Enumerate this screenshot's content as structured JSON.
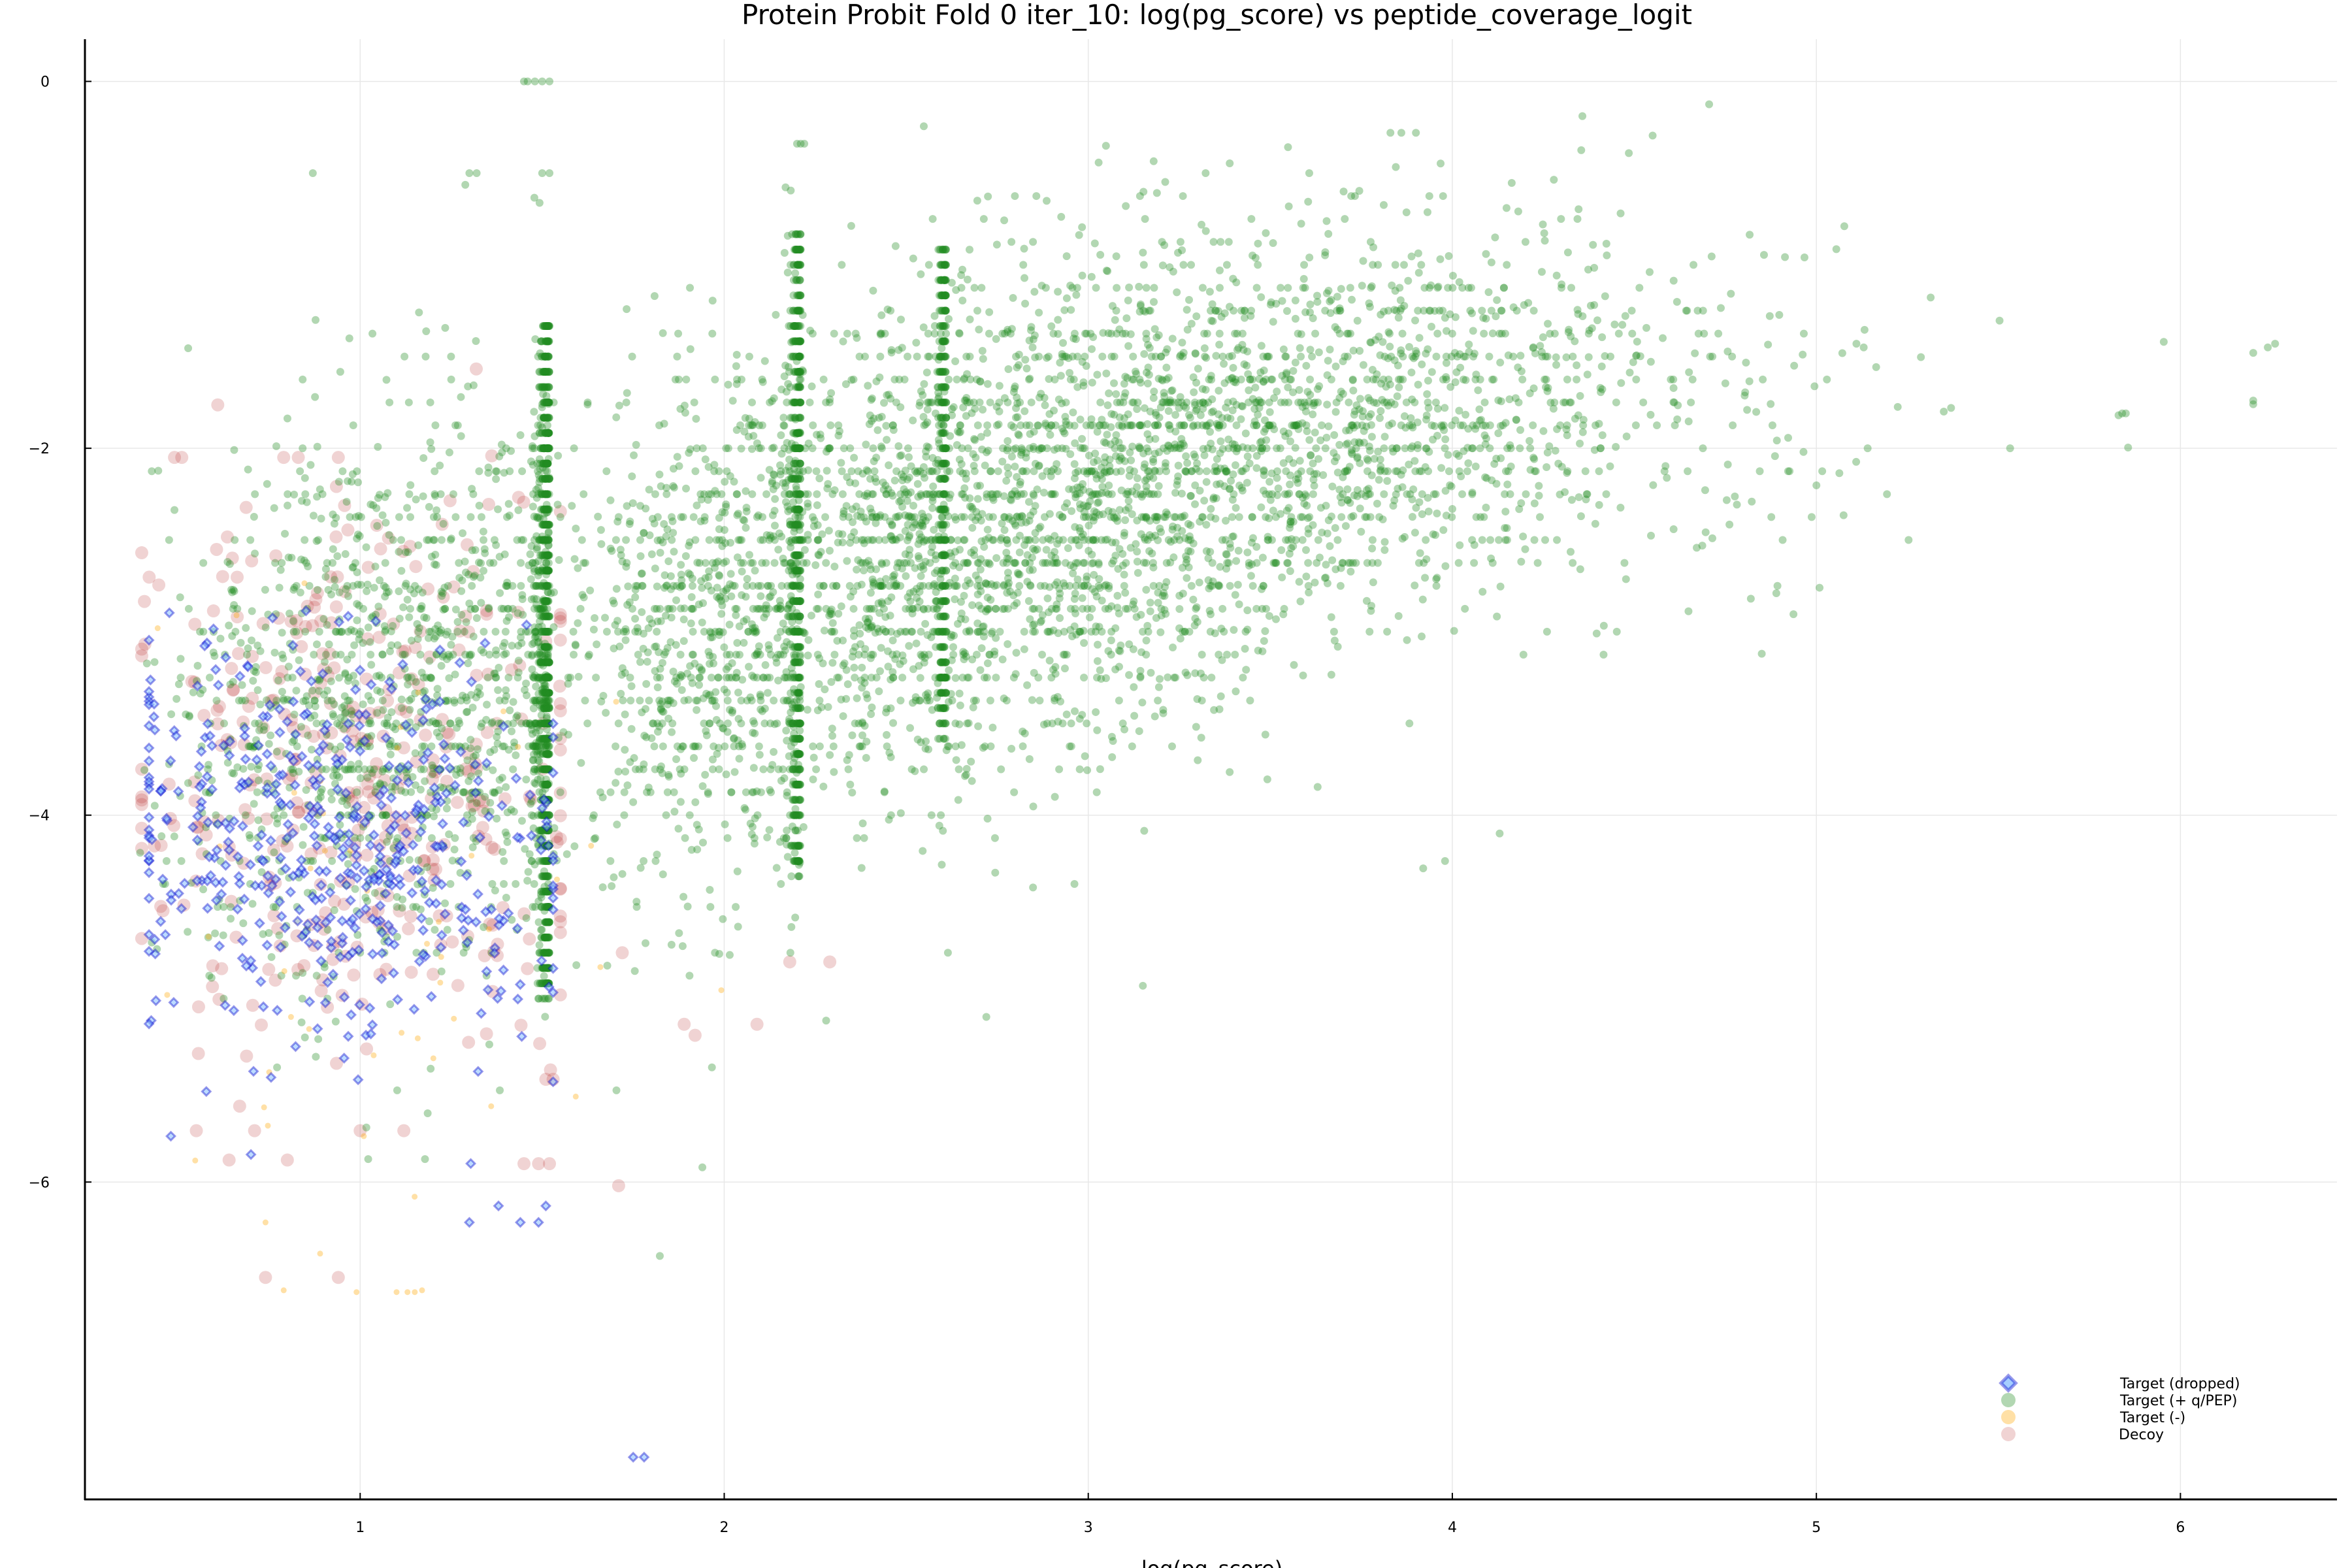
{
  "chart_data": {
    "type": "scatter",
    "title": "Protein Probit Fold 0 iter_10: log(pg_score) vs peptide_coverage_logit",
    "xlabel": "log(pg_score)",
    "ylabel": "",
    "xlim": [
      0.244,
      6.43
    ],
    "ylim": [
      -7.73,
      0.23
    ],
    "x_ticks": [
      1,
      2,
      3,
      4,
      5,
      6
    ],
    "y_ticks": [
      0,
      -2,
      -4,
      -6
    ],
    "x_tick_labels": [
      "1",
      "2",
      "3",
      "4",
      "5",
      "6"
    ],
    "y_tick_labels": [
      "0",
      "−2",
      "−4",
      "−6"
    ],
    "grid": true,
    "legend_position": "bottom-right",
    "legend": [
      "Target (dropped)",
      "Target (+ q/PEP)",
      "Target (-)",
      "Decoy"
    ],
    "series": [
      {
        "name": "Target (+ q/PEP)",
        "marker": "circle",
        "color": "#228B22",
        "alpha": 0.35,
        "approx_count": 9000,
        "clusters": [
          {
            "x_center": 1.15,
            "x_spread": 0.38,
            "x_max": 1.52,
            "y_center": -3.3,
            "y_spread": 0.75,
            "count": 1500,
            "note": "left band, densest at x≈1.52 vertical column"
          },
          {
            "x_column": 1.52,
            "y_range": [
              -5.0,
              -1.3
            ],
            "count": 900,
            "note": "dense vertical stripe"
          },
          {
            "x_center": 1.95,
            "x_spread": 0.22,
            "x_max": 2.21,
            "y_center": -3.0,
            "y_spread": 0.7,
            "count": 900
          },
          {
            "x_column": 2.21,
            "y_range": [
              -4.3,
              -0.8
            ],
            "count": 600,
            "note": "dense vertical stripe"
          },
          {
            "x_center": 2.45,
            "x_spread": 0.2,
            "y_center": -2.6,
            "y_spread": 0.65,
            "count": 800
          },
          {
            "x_column": 2.61,
            "y_range": [
              -3.6,
              -0.9
            ],
            "count": 400
          },
          {
            "x_center": 2.95,
            "x_spread": 0.3,
            "y_center": -2.3,
            "y_spread": 0.7,
            "count": 1100
          },
          {
            "x_center": 3.45,
            "x_spread": 0.35,
            "y_center": -2.0,
            "y_spread": 0.55,
            "count": 1000
          },
          {
            "x_center": 4.0,
            "x_spread": 0.35,
            "y_center": -1.8,
            "y_spread": 0.5,
            "count": 500
          },
          {
            "x_center": 4.7,
            "x_spread": 0.35,
            "y_center": -1.9,
            "y_spread": 0.5,
            "count": 120
          }
        ],
        "notable_points": [
          [
            1.48,
            0.0
          ],
          [
            1.5,
            0.0
          ],
          [
            1.52,
            0.0
          ],
          [
            1.45,
            0.0
          ],
          [
            1.46,
            0.0
          ],
          [
            2.2,
            -0.34
          ],
          [
            2.22,
            -0.34
          ],
          [
            2.21,
            -0.34
          ],
          [
            3.83,
            -0.28
          ],
          [
            3.86,
            -0.28
          ],
          [
            3.9,
            -0.28
          ],
          [
            0.87,
            -0.5
          ],
          [
            1.3,
            -0.5
          ],
          [
            1.32,
            -0.5
          ],
          [
            1.5,
            -0.5
          ],
          [
            1.52,
            -0.5
          ],
          [
            5.11,
            -1.43
          ],
          [
            5.13,
            -1.45
          ],
          [
            5.35,
            -1.8
          ],
          [
            5.37,
            -1.78
          ],
          [
            5.83,
            -1.82
          ],
          [
            5.84,
            -1.81
          ],
          [
            5.85,
            -1.81
          ],
          [
            6.2,
            -1.48
          ],
          [
            6.24,
            -1.45
          ],
          [
            6.26,
            -1.43
          ],
          [
            6.2,
            -1.74
          ],
          [
            6.2,
            -1.76
          ],
          [
            4.85,
            -3.12
          ],
          [
            4.82,
            -2.82
          ],
          [
            4.89,
            -2.79
          ],
          [
            4.13,
            -4.1
          ],
          [
            3.92,
            -4.29
          ],
          [
            3.98,
            -4.25
          ],
          [
            2.72,
            -5.1
          ],
          [
            3.15,
            -4.93
          ],
          [
            1.94,
            -5.92
          ],
          [
            2.28,
            -5.12
          ]
        ]
      },
      {
        "name": "Target (dropped)",
        "marker": "diamond",
        "color": "#0000CD",
        "alpha": 0.4,
        "approx_count": 500,
        "clusters": [
          {
            "x_center": 0.95,
            "x_spread": 0.32,
            "x_range": [
              0.42,
              1.53
            ],
            "y_center": -4.2,
            "y_spread": 0.55,
            "count": 480
          }
        ],
        "notable_points": [
          [
            1.75,
            -7.5
          ],
          [
            1.78,
            -7.5
          ],
          [
            1.44,
            -6.22
          ],
          [
            1.49,
            -6.22
          ],
          [
            1.38,
            -6.13
          ],
          [
            1.51,
            -6.13
          ],
          [
            1.3,
            -6.22
          ],
          [
            0.7,
            -5.85
          ],
          [
            0.48,
            -5.75
          ]
        ]
      },
      {
        "name": "Target (-)",
        "marker": "circle",
        "color": "#FFA500",
        "alpha": 0.35,
        "approx_count": 60,
        "clusters": [
          {
            "x_center": 1.0,
            "x_spread": 0.3,
            "y_center": -4.5,
            "y_spread": 0.8,
            "count": 45
          }
        ],
        "notable_points": [
          [
            0.74,
            -6.22
          ],
          [
            0.89,
            -6.39
          ],
          [
            0.79,
            -6.59
          ],
          [
            0.99,
            -6.6
          ],
          [
            1.1,
            -6.6
          ],
          [
            1.13,
            -6.6
          ],
          [
            1.15,
            -6.6
          ],
          [
            1.17,
            -6.59
          ],
          [
            0.81,
            -5.1
          ],
          [
            0.47,
            -4.98
          ],
          [
            1.01,
            -5.75
          ]
        ]
      },
      {
        "name": "Decoy",
        "marker": "circle",
        "color": "#B22222",
        "alpha": 0.2,
        "approx_count": 400,
        "clusters": [
          {
            "x_center": 1.0,
            "x_spread": 0.32,
            "x_range": [
              0.4,
              1.55
            ],
            "y_center": -3.8,
            "y_spread": 0.75,
            "count": 380
          }
        ],
        "notable_points": [
          [
            0.49,
            -2.05
          ],
          [
            0.51,
            -2.05
          ],
          [
            0.79,
            -2.05
          ],
          [
            0.83,
            -2.05
          ],
          [
            0.94,
            -2.05
          ],
          [
            0.74,
            -6.52
          ],
          [
            0.94,
            -6.52
          ],
          [
            1.71,
            -6.02
          ],
          [
            1.72,
            -4.75
          ],
          [
            1.89,
            -5.14
          ],
          [
            1.92,
            -5.2
          ],
          [
            2.09,
            -5.14
          ],
          [
            2.18,
            -4.8
          ],
          [
            2.29,
            -4.8
          ],
          [
            1.49,
            -5.9
          ],
          [
            1.45,
            -5.9
          ],
          [
            1.52,
            -5.9
          ],
          [
            1.51,
            -5.44
          ],
          [
            1.53,
            -5.44
          ],
          [
            0.64,
            -5.88
          ],
          [
            0.8,
            -5.88
          ],
          [
            0.71,
            -5.72
          ],
          [
            0.55,
            -5.72
          ],
          [
            1.0,
            -5.72
          ],
          [
            1.12,
            -5.72
          ]
        ]
      }
    ]
  },
  "plot": {
    "title": "Protein Probit Fold 0 iter_10: log(pg_score) vs peptide_coverage_logit",
    "xlabel": "log(pg_score)",
    "legend": [
      {
        "label": "Target (dropped)",
        "marker": "diamond"
      },
      {
        "label": "Target (+ q/PEP)",
        "marker": "circle-green"
      },
      {
        "label": "Target (-)",
        "marker": "circle-orange"
      },
      {
        "label": "Decoy",
        "marker": "circle-decoy"
      }
    ]
  }
}
